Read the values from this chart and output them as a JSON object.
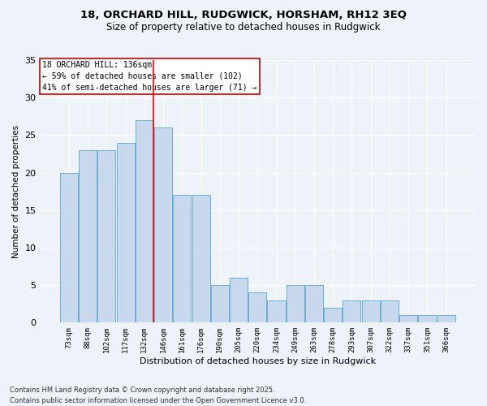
{
  "title": "18, ORCHARD HILL, RUDGWICK, HORSHAM, RH12 3EQ",
  "subtitle": "Size of property relative to detached houses in Rudgwick",
  "xlabel": "Distribution of detached houses by size in Rudgwick",
  "ylabel": "Number of detached properties",
  "categories": [
    "73sqm",
    "88sqm",
    "102sqm",
    "117sqm",
    "132sqm",
    "146sqm",
    "161sqm",
    "176sqm",
    "190sqm",
    "205sqm",
    "220sqm",
    "234sqm",
    "249sqm",
    "263sqm",
    "278sqm",
    "293sqm",
    "307sqm",
    "322sqm",
    "337sqm",
    "351sqm",
    "366sqm"
  ],
  "values": [
    20,
    23,
    23,
    24,
    27,
    26,
    17,
    17,
    5,
    6,
    4,
    3,
    5,
    5,
    2,
    3,
    3,
    3,
    1,
    1,
    1
  ],
  "bar_color": "#c8d9ee",
  "bar_edge_color": "#6aaed6",
  "background_color": "#eef2f9",
  "grid_color": "#ffffff",
  "redline_x": 4.5,
  "annotation_line1": "18 ORCHARD HILL: 136sqm",
  "annotation_line2": "← 59% of detached houses are smaller (102)",
  "annotation_line3": "41% of semi-detached houses are larger (71) →",
  "footer": "Contains HM Land Registry data © Crown copyright and database right 2025.\nContains public sector information licensed under the Open Government Licence v3.0.",
  "ylim": [
    0,
    35
  ],
  "yticks": [
    0,
    5,
    10,
    15,
    20,
    25,
    30,
    35
  ]
}
